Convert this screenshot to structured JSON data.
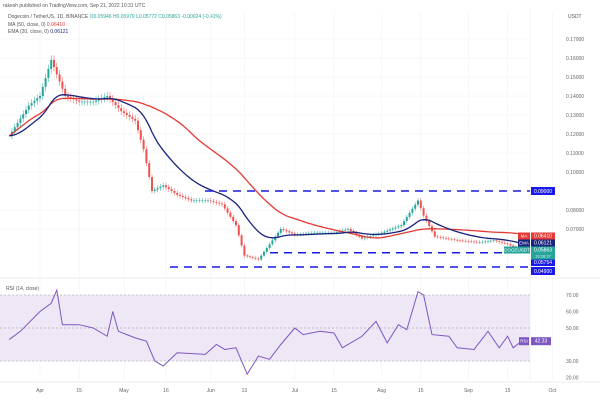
{
  "header": {
    "published": "rakesh published on TradingView.com, Sep 21, 2022 10:31 UTC",
    "symbol": "Dogecoin / TetherUS, 1D, BINANCE",
    "ohlc": "O0.05946 H0.05979 L0.05772 C0.05863 -0.00024 (-0.41%)",
    "ma_label": "MA (50, close, 0)",
    "ma_value": "0.06410",
    "ema_label": "EMA (20, close, 0)",
    "ema_value": "0.06121",
    "rsi_label": "RSI (14, close)"
  },
  "colors": {
    "price_up": "#26a69a",
    "price_down": "#ef5350",
    "ma": "#e53935",
    "ema": "#1a237e",
    "level": "#1a1ae6",
    "rsi": "#7e57c2",
    "rsi_band": "#ede7f6"
  },
  "chart_data": [
    {
      "type": "line",
      "title": "Dogecoin / TetherUS, 1D, BINANCE",
      "unit": "USDT",
      "y_ticks": [
        "0.17000",
        "0.16000",
        "0.15000",
        "0.14000",
        "0.13000",
        "0.12000",
        "0.11000",
        "0.10000",
        "0.08000",
        "0.07000"
      ],
      "x_ticks": [
        "Apr",
        "15",
        "May",
        "16",
        "Jun",
        "13",
        "Jul",
        "15",
        "Aug",
        "15",
        "Sep",
        "15",
        "Oct"
      ],
      "x": [
        "2022-03-21",
        "2022-03-28",
        "2022-04-01",
        "2022-04-05",
        "2022-04-10",
        "2022-04-15",
        "2022-04-20",
        "2022-04-25",
        "2022-04-30",
        "2022-05-05",
        "2022-05-08",
        "2022-05-11",
        "2022-05-15",
        "2022-05-20",
        "2022-05-25",
        "2022-05-31",
        "2022-06-05",
        "2022-06-10",
        "2022-06-13",
        "2022-06-18",
        "2022-06-22",
        "2022-06-26",
        "2022-07-01",
        "2022-07-08",
        "2022-07-15",
        "2022-07-20",
        "2022-07-25",
        "2022-08-01",
        "2022-08-08",
        "2022-08-14",
        "2022-08-16",
        "2022-08-20",
        "2022-08-28",
        "2022-09-05",
        "2022-09-10",
        "2022-09-15",
        "2022-09-20"
      ],
      "series": [
        {
          "name": "DOGEUSDT",
          "values": [
            0.119,
            0.135,
            0.14,
            0.159,
            0.14,
            0.137,
            0.137,
            0.14,
            0.132,
            0.127,
            0.112,
            0.09,
            0.093,
            0.088,
            0.085,
            0.085,
            0.083,
            0.072,
            0.056,
            0.054,
            0.062,
            0.07,
            0.067,
            0.068,
            0.068,
            0.07,
            0.065,
            0.068,
            0.072,
            0.085,
            0.077,
            0.066,
            0.064,
            0.063,
            0.064,
            0.062,
            0.0586
          ]
        }
      ],
      "levels": [
        {
          "value": 0.09,
          "label": "0.09000"
        },
        {
          "value": 0.0575,
          "label": "0.05754"
        },
        {
          "value": 0.05,
          "label": "0.04900"
        }
      ],
      "price_tags": [
        {
          "name": "MA",
          "value": "0.06410"
        },
        {
          "name": "EMA",
          "value": "0.06121"
        },
        {
          "name": "DOGEUSDT",
          "value": "0.05863",
          "countdown": "13:28:37"
        }
      ]
    },
    {
      "type": "line",
      "title": "RSI (14, close)",
      "y_ticks": [
        "70.00",
        "60.00",
        "50.00",
        "30.00",
        "20.00"
      ],
      "band": [
        30,
        70
      ],
      "x": [
        "2022-03-21",
        "2022-03-25",
        "2022-04-01",
        "2022-04-05",
        "2022-04-07",
        "2022-04-09",
        "2022-04-15",
        "2022-04-20",
        "2022-04-25",
        "2022-04-27",
        "2022-04-29",
        "2022-05-05",
        "2022-05-09",
        "2022-05-12",
        "2022-05-15",
        "2022-05-20",
        "2022-05-30",
        "2022-06-03",
        "2022-06-06",
        "2022-06-10",
        "2022-06-14",
        "2022-06-18",
        "2022-06-22",
        "2022-06-26",
        "2022-07-01",
        "2022-07-04",
        "2022-07-10",
        "2022-07-15",
        "2022-07-18",
        "2022-07-25",
        "2022-07-30",
        "2022-08-03",
        "2022-08-07",
        "2022-08-10",
        "2022-08-14",
        "2022-08-16",
        "2022-08-19",
        "2022-08-25",
        "2022-08-28",
        "2022-09-03",
        "2022-09-08",
        "2022-09-12",
        "2022-09-15",
        "2022-09-17",
        "2022-09-20"
      ],
      "series": [
        {
          "name": "RSI",
          "values": [
            43,
            48,
            60,
            65,
            73,
            52,
            52,
            50,
            45,
            60,
            48,
            44,
            42,
            30,
            27,
            35,
            34,
            40,
            37,
            38,
            22,
            33,
            31,
            40,
            50,
            46,
            48,
            47,
            38,
            45,
            54,
            41,
            52,
            49,
            72,
            70,
            46,
            45,
            38,
            37,
            48,
            38,
            45,
            38,
            42
          ]
        }
      ],
      "last_value": "42.33"
    }
  ]
}
